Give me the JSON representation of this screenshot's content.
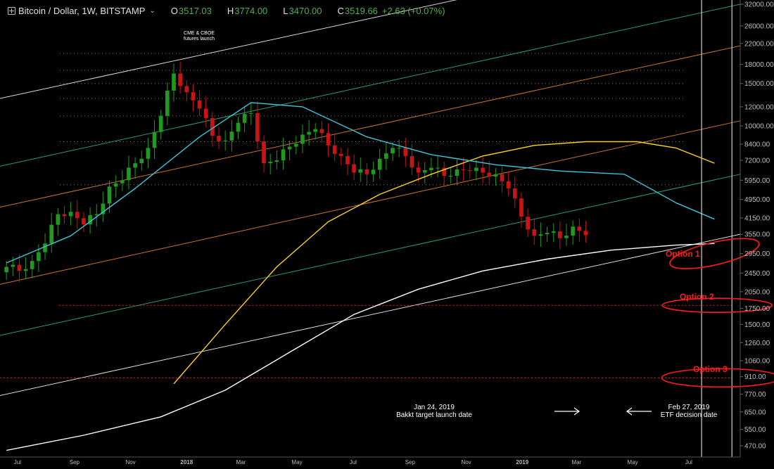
{
  "header": {
    "symbol": "Bitcoin / Dollar, 1W, BITSTAMP",
    "open_label": "O",
    "open": "3517.03",
    "high_label": "H",
    "high": "3774.00",
    "low_label": "L",
    "low": "3470.00",
    "close_label": "C",
    "close": "3519.66",
    "change": "+2.63 (+0.07%)"
  },
  "colors": {
    "up": "#1f9a1f",
    "down": "#c91414",
    "ma_cyan": "#3cc6d8",
    "ma_yellow": "#ffd21f",
    "ma_white": "#ffffff",
    "channel_green": "#2b9c6e",
    "channel_orange": "#c8742a",
    "channel_white": "#d9d9d9",
    "annotation_red": "#ff1a1a",
    "axis_text": "#bdbdbd"
  },
  "chart_data": {
    "type": "candlestick",
    "scale": "log",
    "ylim": [
      430,
      34000
    ],
    "y_ticks": [
      32000,
      26000,
      22000,
      18000,
      15000,
      12000,
      10000,
      8400,
      7200,
      5950,
      4950,
      4150,
      3550,
      2950,
      2450,
      2050,
      1750,
      1500,
      1260,
      1060,
      910,
      770,
      650,
      550,
      470
    ],
    "y_tick_labels": [
      "32000.00",
      "26000.00",
      "22000.00",
      "18000.00",
      "15000.00",
      "12000.00",
      "10000.00",
      "8400.00",
      "7200.00",
      "5950.00",
      "4950.00",
      "4150.00",
      "3550.00",
      "2950.00",
      "2450.00",
      "2050.00",
      "1750.00",
      "1500.00",
      "1260.00",
      "1060.00",
      "910.00",
      "770.00",
      "650.00",
      "550.00",
      "470.00"
    ],
    "xlim": [
      "2017-06-12",
      "2019-08-26"
    ],
    "x_ticks": [
      {
        "date": "2017-07-01",
        "label": "Jul",
        "bold": false
      },
      {
        "date": "2017-09-01",
        "label": "Sep",
        "bold": false
      },
      {
        "date": "2017-11-01",
        "label": "Nov",
        "bold": false
      },
      {
        "date": "2018-01-01",
        "label": "2018",
        "bold": true
      },
      {
        "date": "2018-03-01",
        "label": "Mar",
        "bold": false
      },
      {
        "date": "2018-05-01",
        "label": "May",
        "bold": false
      },
      {
        "date": "2018-07-01",
        "label": "Jul",
        "bold": false
      },
      {
        "date": "2018-09-01",
        "label": "Sep",
        "bold": false
      },
      {
        "date": "2018-11-01",
        "label": "Nov",
        "bold": false
      },
      {
        "date": "2019-01-01",
        "label": "2019",
        "bold": true
      },
      {
        "date": "2019-03-01",
        "label": "Mar",
        "bold": false
      },
      {
        "date": "2019-05-01",
        "label": "May",
        "bold": false
      },
      {
        "date": "2019-07-01",
        "label": "Jul",
        "bold": false
      }
    ],
    "closes_every_two_weeks": [
      2600,
      2500,
      2750,
      3250,
      4300,
      4400,
      3900,
      4300,
      5600,
      5950,
      7000,
      8100,
      11000,
      16500,
      13800,
      11800,
      9100,
      8700,
      10300,
      11300,
      7000,
      7200,
      8200,
      9200,
      9700,
      8300,
      7500,
      6400,
      6300,
      7300,
      8100,
      7500,
      6400,
      6700,
      6200,
      6600,
      6500,
      6400,
      6300,
      5500,
      4200,
      3500,
      3600,
      3420,
      3820,
      3520
    ],
    "ma_yellow": [
      [
        26,
        850
      ],
      [
        34,
        1500
      ],
      [
        42,
        2600
      ],
      [
        50,
        4000
      ],
      [
        58,
        5200
      ],
      [
        66,
        6300
      ],
      [
        74,
        7500
      ],
      [
        82,
        8300
      ],
      [
        90,
        8600
      ],
      [
        98,
        8600
      ],
      [
        104,
        8100
      ],
      [
        110,
        7000
      ]
    ],
    "ma_cyan": [
      [
        0,
        2700
      ],
      [
        10,
        3500
      ],
      [
        20,
        5500
      ],
      [
        30,
        9000
      ],
      [
        38,
        12500
      ],
      [
        46,
        12000
      ],
      [
        56,
        9000
      ],
      [
        66,
        7600
      ],
      [
        76,
        6900
      ],
      [
        86,
        6500
      ],
      [
        96,
        6300
      ],
      [
        104,
        4800
      ],
      [
        110,
        4100
      ]
    ],
    "ma_white": [
      [
        0,
        450
      ],
      [
        12,
        520
      ],
      [
        24,
        620
      ],
      [
        34,
        800
      ],
      [
        44,
        1150
      ],
      [
        54,
        1650
      ],
      [
        64,
        2100
      ],
      [
        74,
        2500
      ],
      [
        84,
        2800
      ],
      [
        94,
        3050
      ],
      [
        104,
        3200
      ],
      [
        110,
        3250
      ]
    ],
    "channels": [
      {
        "color": "white",
        "points": [
          [
            "2017-06-12",
            13000
          ],
          [
            "2019-08-26",
            60000
          ]
        ]
      },
      {
        "color": "green",
        "points": [
          [
            "2017-06-12",
            6800
          ],
          [
            "2019-08-26",
            32000
          ]
        ]
      },
      {
        "color": "orange",
        "points": [
          [
            "2017-06-12",
            4600
          ],
          [
            "2019-08-26",
            21500
          ]
        ]
      },
      {
        "color": "orange",
        "points": [
          [
            "2017-06-12",
            2200
          ],
          [
            "2019-08-26",
            10500
          ]
        ]
      },
      {
        "color": "green",
        "points": [
          [
            "2017-06-12",
            1350
          ],
          [
            "2019-08-26",
            6300
          ]
        ]
      },
      {
        "color": "white",
        "points": [
          [
            "2017-06-12",
            760
          ],
          [
            "2019-08-26",
            3550
          ]
        ]
      }
    ],
    "dotted_levels": [
      20000,
      17000,
      15000,
      13000,
      11000,
      8600,
      5700
    ],
    "red_dotted_levels": [
      {
        "value": 1800,
        "from": "2017-08-15"
      },
      {
        "value": 900,
        "from": "2017-06-12"
      }
    ],
    "vertical_lines": [
      "2019-07-15",
      "2019-08-17"
    ],
    "options": [
      {
        "label": "Option 1",
        "center": [
          "2019-07-29",
          2950
        ]
      },
      {
        "label": "Option 2",
        "center": [
          "2019-08-01",
          1800
        ]
      },
      {
        "label": "Option 3",
        "center": [
          "2019-08-05",
          900
        ]
      }
    ]
  },
  "annotations": {
    "cme_line1": "CME & CBOE",
    "cme_line2": "futures launch",
    "bakkt_line1": "Jan 24, 2019",
    "bakkt_line2": "Bakkt target launch date",
    "etf_line1": "Feb 27, 2019",
    "etf_line2": "ETF decision date",
    "option1": "Option 1",
    "option2": "Option 2",
    "option3": "Option 3"
  }
}
